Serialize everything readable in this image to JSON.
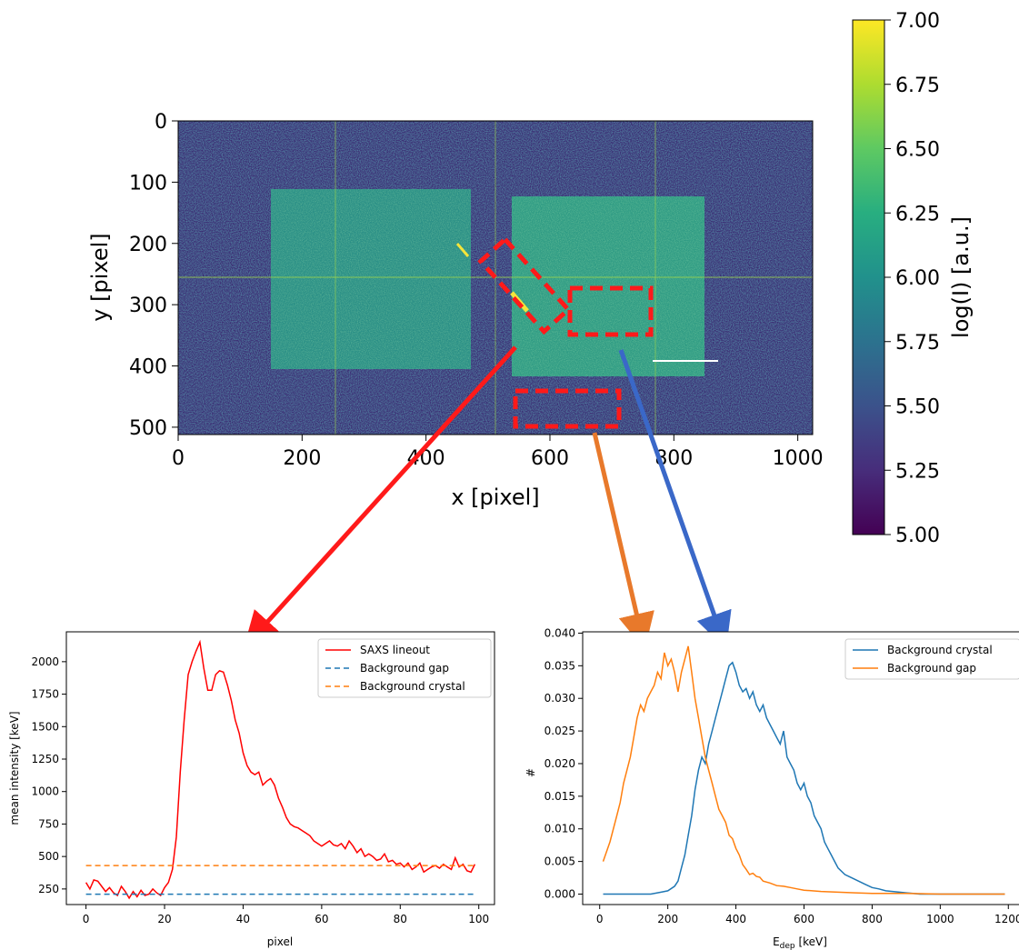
{
  "chart_data": [
    {
      "type": "heatmap",
      "title": "",
      "xlabel": "x [pixel]",
      "ylabel": "y [pixel]",
      "xlim": [
        0,
        1024
      ],
      "ylim": [
        512,
        0
      ],
      "xticks": [
        "0",
        "200",
        "400",
        "600",
        "800",
        "1000"
      ],
      "yticks": [
        "0",
        "100",
        "200",
        "300",
        "400",
        "500"
      ],
      "colorbar": {
        "label": "log(I) [a.u.]",
        "range": [
          5.0,
          7.0
        ],
        "ticks": [
          "5.00",
          "5.25",
          "5.50",
          "5.75",
          "6.00",
          "6.25",
          "6.50",
          "6.75",
          "7.00"
        ],
        "colormap": "viridis"
      },
      "regions": [
        {
          "name": "left crystal",
          "x": [
            150,
            470
          ],
          "y": [
            110,
            400
          ]
        },
        {
          "name": "right crystal",
          "x": [
            550,
            860
          ],
          "y": [
            120,
            410
          ]
        }
      ],
      "roi_boxes": [
        {
          "name": "SAXS lineout",
          "color": "#ff0000",
          "rotated": true
        },
        {
          "name": "Background crystal",
          "color": "#ff0000",
          "x": [
            635,
            765
          ],
          "y": [
            275,
            350
          ]
        },
        {
          "name": "Background gap",
          "color": "#ff0000",
          "x": [
            545,
            710
          ],
          "y": [
            440,
            495
          ]
        }
      ]
    },
    {
      "type": "line",
      "title": "",
      "xlabel": "pixel",
      "ylabel": "mean intensity [keV]",
      "xlim": [
        -5,
        104
      ],
      "ylim": [
        130,
        2230
      ],
      "xticks": [
        "0",
        "20",
        "40",
        "60",
        "80",
        "100"
      ],
      "yticks": [
        "250",
        "500",
        "750",
        "1000",
        "1250",
        "1500",
        "1750",
        "2000"
      ],
      "legend": "top-right",
      "series": [
        {
          "name": "SAXS lineout",
          "color": "#ff0000",
          "style": "solid",
          "x": [
            0,
            1,
            2,
            3,
            4,
            5,
            6,
            7,
            8,
            9,
            10,
            11,
            12,
            13,
            14,
            15,
            16,
            17,
            18,
            19,
            20,
            21,
            22,
            23,
            24,
            25,
            26,
            27,
            28,
            29,
            30,
            31,
            32,
            33,
            34,
            35,
            36,
            37,
            38,
            39,
            40,
            41,
            42,
            43,
            44,
            45,
            46,
            47,
            48,
            49,
            50,
            51,
            52,
            53,
            54,
            55,
            56,
            57,
            58,
            59,
            60,
            61,
            62,
            63,
            64,
            65,
            66,
            67,
            68,
            69,
            70,
            71,
            72,
            73,
            74,
            75,
            76,
            77,
            78,
            79,
            80,
            81,
            82,
            83,
            84,
            85,
            86,
            87,
            88,
            89,
            90,
            91,
            92,
            93,
            94,
            95,
            96,
            97,
            98,
            99
          ],
          "values": [
            300,
            250,
            320,
            310,
            270,
            230,
            260,
            220,
            200,
            270,
            230,
            180,
            230,
            190,
            240,
            200,
            210,
            250,
            220,
            200,
            260,
            300,
            400,
            650,
            1150,
            1550,
            1900,
            2000,
            2080,
            2150,
            1950,
            1780,
            1780,
            1900,
            1930,
            1920,
            1820,
            1700,
            1550,
            1450,
            1300,
            1200,
            1150,
            1130,
            1150,
            1050,
            1080,
            1100,
            1050,
            950,
            880,
            800,
            750,
            730,
            720,
            700,
            680,
            660,
            620,
            600,
            580,
            600,
            620,
            590,
            580,
            600,
            560,
            620,
            580,
            530,
            560,
            500,
            520,
            500,
            470,
            480,
            520,
            460,
            470,
            440,
            450,
            420,
            450,
            400,
            420,
            450,
            380,
            400,
            420,
            430,
            410,
            440,
            420,
            400,
            490,
            420,
            440,
            390,
            380,
            440
          ]
        },
        {
          "name": "Background gap",
          "color": "#1f77b4",
          "style": "dashed",
          "x": [
            0,
            99
          ],
          "values": [
            210,
            210
          ]
        },
        {
          "name": "Background crystal",
          "color": "#ff7f0e",
          "style": "dashed",
          "x": [
            0,
            99
          ],
          "values": [
            430,
            430
          ]
        }
      ]
    },
    {
      "type": "line",
      "title": "",
      "xlabel": "E_dep [keV]",
      "xlabel_main": "E",
      "xlabel_sub": "dep",
      "xlabel_unit": " [keV]",
      "ylabel": "#",
      "xlim": [
        -50,
        1250
      ],
      "ylim": [
        -0.0016,
        0.0402
      ],
      "xticks": [
        "0",
        "200",
        "400",
        "600",
        "800",
        "1000",
        "1200"
      ],
      "yticks": [
        "0.000",
        "0.005",
        "0.010",
        "0.015",
        "0.020",
        "0.025",
        "0.030",
        "0.035",
        "0.040"
      ],
      "legend": "top-right",
      "series": [
        {
          "name": "Background crystal",
          "color": "#1f77b4",
          "style": "solid",
          "x": [
            10,
            50,
            100,
            150,
            180,
            200,
            220,
            230,
            240,
            250,
            260,
            270,
            280,
            290,
            300,
            310,
            320,
            330,
            340,
            350,
            360,
            370,
            380,
            390,
            400,
            410,
            420,
            430,
            440,
            450,
            460,
            470,
            480,
            490,
            500,
            510,
            520,
            530,
            540,
            550,
            560,
            570,
            580,
            590,
            600,
            610,
            620,
            630,
            640,
            650,
            660,
            670,
            680,
            690,
            700,
            720,
            740,
            760,
            780,
            800,
            820,
            840,
            860,
            880,
            900,
            920,
            940,
            960,
            980,
            1000,
            1050,
            1100,
            1150,
            1190
          ],
          "values": [
            0,
            0,
            0,
            0,
            0.0003,
            0.0005,
            0.0012,
            0.002,
            0.004,
            0.006,
            0.009,
            0.012,
            0.016,
            0.019,
            0.021,
            0.02,
            0.023,
            0.025,
            0.027,
            0.029,
            0.031,
            0.033,
            0.035,
            0.0355,
            0.034,
            0.032,
            0.031,
            0.0315,
            0.03,
            0.031,
            0.029,
            0.028,
            0.029,
            0.027,
            0.026,
            0.025,
            0.024,
            0.023,
            0.025,
            0.021,
            0.02,
            0.019,
            0.017,
            0.016,
            0.017,
            0.015,
            0.014,
            0.012,
            0.011,
            0.01,
            0.008,
            0.007,
            0.006,
            0.005,
            0.004,
            0.003,
            0.0025,
            0.002,
            0.0015,
            0.001,
            0.0008,
            0.0005,
            0.0004,
            0.0003,
            0.0002,
            0.0001,
            0,
            0,
            0,
            0,
            0,
            0,
            0,
            0
          ]
        },
        {
          "name": "Background gap",
          "color": "#ff7f0e",
          "style": "solid",
          "x": [
            10,
            30,
            50,
            60,
            70,
            80,
            90,
            100,
            110,
            120,
            130,
            140,
            150,
            160,
            170,
            180,
            190,
            200,
            210,
            220,
            230,
            240,
            250,
            260,
            270,
            280,
            290,
            300,
            310,
            320,
            330,
            340,
            350,
            360,
            370,
            380,
            390,
            400,
            410,
            420,
            430,
            440,
            450,
            460,
            470,
            480,
            500,
            520,
            540,
            560,
            580,
            600,
            650,
            700,
            750,
            800,
            900,
            1000,
            1100,
            1190
          ],
          "values": [
            0.005,
            0.008,
            0.012,
            0.014,
            0.017,
            0.019,
            0.021,
            0.024,
            0.027,
            0.029,
            0.028,
            0.03,
            0.031,
            0.032,
            0.034,
            0.033,
            0.037,
            0.035,
            0.036,
            0.034,
            0.031,
            0.034,
            0.036,
            0.038,
            0.034,
            0.03,
            0.027,
            0.024,
            0.021,
            0.019,
            0.017,
            0.015,
            0.013,
            0.012,
            0.011,
            0.009,
            0.0085,
            0.007,
            0.006,
            0.0045,
            0.0038,
            0.003,
            0.0032,
            0.0027,
            0.0026,
            0.002,
            0.0017,
            0.0013,
            0.0012,
            0.001,
            0.0008,
            0.0006,
            0.0004,
            0.0003,
            0.0002,
            0.0001,
            0.0001,
            0,
            0,
            0
          ]
        }
      ]
    }
  ]
}
